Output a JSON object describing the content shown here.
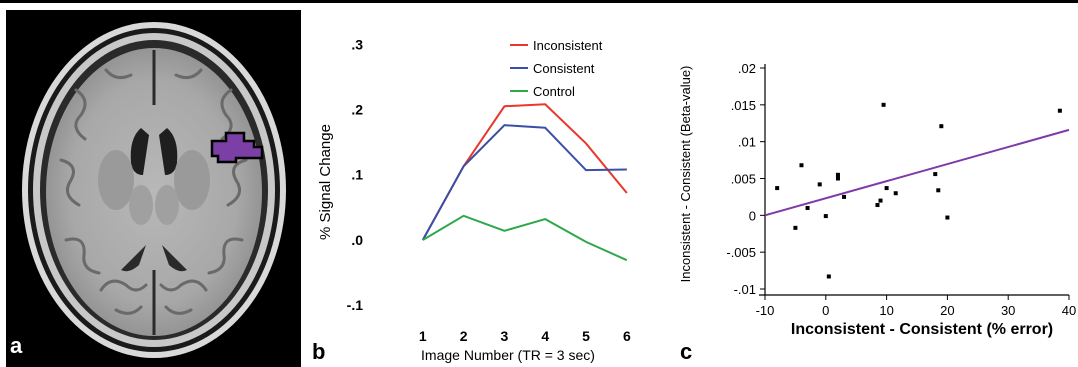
{
  "panels": {
    "a": {
      "letter": "a"
    },
    "b": {
      "letter": "b"
    },
    "c": {
      "letter": "c"
    }
  },
  "colors": {
    "roi": "#7b3fa6",
    "inconsistent": "#e8382b",
    "consistent": "#3a4fa8",
    "control": "#2ea84a",
    "fit": "#7d3aa8"
  },
  "chart_data": [
    {
      "type": "line",
      "xlabel": "Image Number (TR = 3 sec)",
      "ylabel": "% Signal Change",
      "x": [
        1,
        2,
        3,
        4,
        5,
        6
      ],
      "x_tick_labels": [
        "1",
        "2",
        "3",
        "4",
        "5",
        "6"
      ],
      "y_tick_labels": [
        ".3",
        ".2",
        ".1",
        ".0",
        "-.1"
      ],
      "y_ticks": [
        0.3,
        0.2,
        0.1,
        0.0,
        -0.1
      ],
      "xlim": [
        0,
        6.2
      ],
      "ylim": [
        -0.135,
        0.325
      ],
      "legend_position": "top-right",
      "series": [
        {
          "name": "Inconsistent",
          "values": [
            0.0,
            0.113,
            0.205,
            0.208,
            0.148,
            0.072
          ]
        },
        {
          "name": "Consistent",
          "values": [
            0.0,
            0.113,
            0.176,
            0.172,
            0.107,
            0.108
          ]
        },
        {
          "name": "Control",
          "values": [
            0.0,
            0.037,
            0.014,
            0.032,
            -0.003,
            -0.031
          ]
        }
      ]
    },
    {
      "type": "scatter",
      "xlabel": "Inconsistent - Consistent (% error)",
      "ylabel": "Inconsistent - Consistent (Beta-value)",
      "x_tick_labels": [
        "-10",
        "0",
        "10",
        "20",
        "30",
        "40"
      ],
      "x_ticks": [
        -10,
        0,
        10,
        20,
        30,
        40
      ],
      "y_tick_labels": [
        ".02",
        ".015",
        ".01",
        ".005",
        "0",
        "-.005",
        "-.01"
      ],
      "y_ticks": [
        0.02,
        0.015,
        0.01,
        0.005,
        0.0,
        -0.005,
        -0.01
      ],
      "xlim": [
        -10,
        40
      ],
      "ylim": [
        -0.01,
        0.02
      ],
      "points": [
        {
          "x": -8.0,
          "y": 0.0037
        },
        {
          "x": -5.0,
          "y": -0.0017
        },
        {
          "x": -4.0,
          "y": 0.0068
        },
        {
          "x": -3.0,
          "y": 0.001
        },
        {
          "x": -1.0,
          "y": 0.0042
        },
        {
          "x": 0.0,
          "y": -0.0001
        },
        {
          "x": 0.5,
          "y": -0.0083
        },
        {
          "x": 2.0,
          "y": 0.0055
        },
        {
          "x": 2.0,
          "y": 0.005
        },
        {
          "x": 3.0,
          "y": 0.0025
        },
        {
          "x": 8.5,
          "y": 0.0014
        },
        {
          "x": 9.0,
          "y": 0.002
        },
        {
          "x": 9.5,
          "y": 0.015
        },
        {
          "x": 10.0,
          "y": 0.0037
        },
        {
          "x": 11.5,
          "y": 0.003
        },
        {
          "x": 18.0,
          "y": 0.0056
        },
        {
          "x": 18.5,
          "y": 0.0034
        },
        {
          "x": 19.0,
          "y": 0.0121
        },
        {
          "x": 20.0,
          "y": -0.0003
        },
        {
          "x": 38.5,
          "y": 0.0142
        }
      ],
      "fit_line": [
        {
          "x": -10,
          "y": 0.0
        },
        {
          "x": 40,
          "y": 0.0116
        }
      ]
    }
  ]
}
